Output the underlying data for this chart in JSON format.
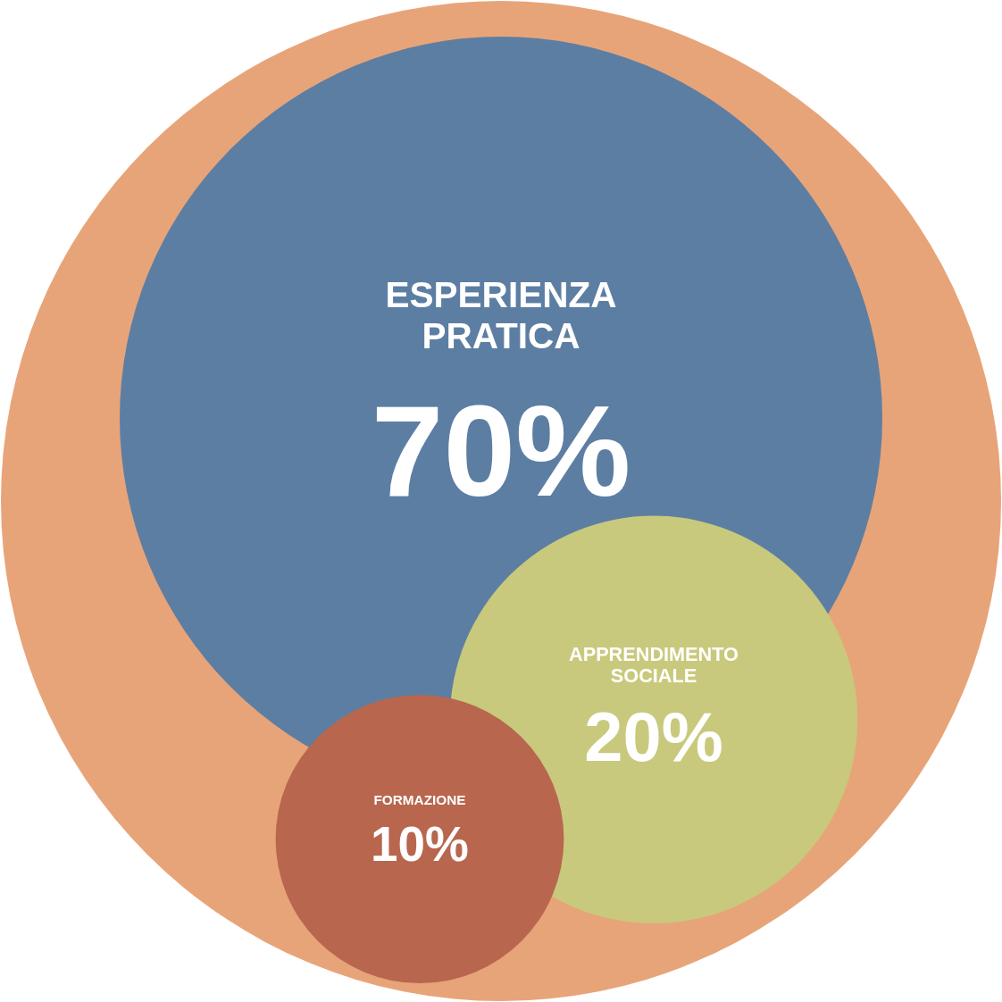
{
  "chart_data": {
    "type": "other",
    "categories": [
      "ESPERIENZA PRATICA",
      "APPRENDIMENTO SOCIALE",
      "FORMAZIONE"
    ],
    "values": [
      70,
      20,
      10
    ],
    "value_labels": [
      "70%",
      "20%",
      "10%"
    ],
    "colors": [
      "#5d7ea3",
      "#c8c97c",
      "#b8664e"
    ]
  }
}
